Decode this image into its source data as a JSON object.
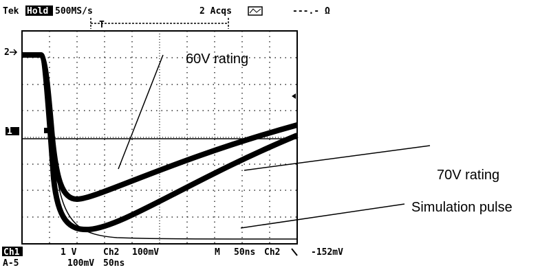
{
  "header": {
    "brand": "Tek",
    "mode": "Hold",
    "sample_rate": "500MS/s",
    "acquisitions": "2 Acqs",
    "measurement": "---.- Ω",
    "trigger": "T"
  },
  "markers": {
    "ch2": "2",
    "ch1": "1"
  },
  "annotations": [
    "60V rating",
    "70V rating",
    "Simulation pulse"
  ],
  "footer": {
    "ch1": "Ch1",
    "ch1_scale": "1 V",
    "ch2": "Ch2",
    "ch2_scale": "100mV",
    "timebase_label": "M",
    "timebase": "50ns",
    "trigger_source": "Ch2",
    "trigger_level": "-152mV",
    "line2_label": "A-5",
    "line2_scale": "100mV",
    "line2_time": "50ns"
  }
}
